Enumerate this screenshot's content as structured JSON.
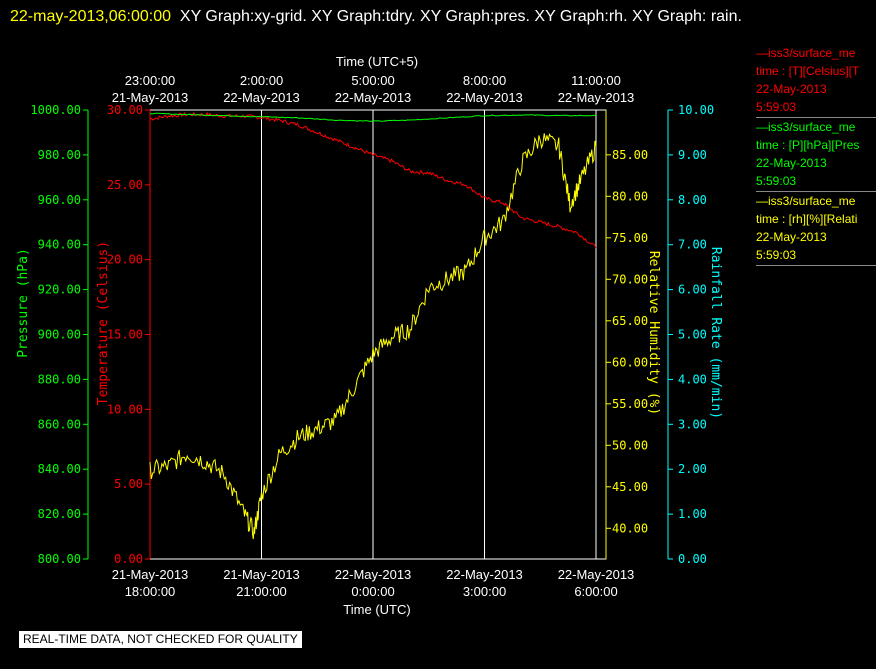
{
  "header": {
    "datetime": "22-may-2013,06:00:00",
    "graphs": "XY Graph:xy-grid.  XY Graph:tdry.  XY Graph:pres.  XY Graph:rh.  XY Graph: rain."
  },
  "colors": {
    "temperature": "#ff0000",
    "pressure": "#00ff00",
    "rh": "#ffff00",
    "rain": "#00ffff",
    "grid": "#ffffff"
  },
  "legend": [
    {
      "line1": "iss3/surface_me",
      "line2": "time : [T][Celsius][T",
      "line3": "22-May-2013",
      "line4": "5:59:03",
      "color": "#ff0000"
    },
    {
      "line1": "iss3/surface_me",
      "line2": "time : [P][hPa][Pres",
      "line3": "22-May-2013",
      "line4": "5:59:03",
      "color": "#00ff00"
    },
    {
      "line1": "iss3/surface_me",
      "line2": "time : [rh][%][Relati",
      "line3": "22-May-2013",
      "line4": "5:59:03",
      "color": "#ffff00"
    }
  ],
  "footer": "REAL-TIME DATA, NOT CHECKED FOR QUALITY",
  "chart_data": {
    "type": "line",
    "x_bottom": {
      "label": "Time (UTC)",
      "range_hours": [
        0,
        12
      ],
      "ticks": [
        {
          "at": 0,
          "date": "21-May-2013",
          "time": "18:00:00"
        },
        {
          "at": 3,
          "date": "21-May-2013",
          "time": "21:00:00"
        },
        {
          "at": 6,
          "date": "22-May-2013",
          "time": "0:00:00"
        },
        {
          "at": 9,
          "date": "22-May-2013",
          "time": "3:00:00"
        },
        {
          "at": 12,
          "date": "22-May-2013",
          "time": "6:00:00"
        }
      ]
    },
    "x_top": {
      "label": "Time (UTC+5)",
      "ticks": [
        {
          "at": 0,
          "time": "23:00:00",
          "date": "21-May-2013"
        },
        {
          "at": 3,
          "time": "2:00:00",
          "date": "22-May-2013"
        },
        {
          "at": 6,
          "time": "5:00:00",
          "date": "22-May-2013"
        },
        {
          "at": 9,
          "time": "8:00:00",
          "date": "22-May-2013"
        },
        {
          "at": 12,
          "time": "11:00:00",
          "date": "22-May-2013"
        }
      ]
    },
    "axes": {
      "pressure": {
        "label": "Pressure (hPa)",
        "range": [
          800,
          1000
        ],
        "ticks": [
          "800.00",
          "820.00",
          "840.00",
          "860.00",
          "880.00",
          "900.00",
          "920.00",
          "940.00",
          "960.00",
          "980.00",
          "1000.00"
        ]
      },
      "temperature": {
        "label": "Temperature (Celsius)",
        "range": [
          0,
          30
        ],
        "ticks": [
          "0.00",
          "5.00",
          "10.00",
          "15.00",
          "20.00",
          "25.00",
          "30.00"
        ]
      },
      "rh": {
        "label": "Relative Humidity (%)",
        "range": [
          36.3,
          90.4
        ],
        "ticks": [
          "40.00",
          "45.00",
          "50.00",
          "55.00",
          "60.00",
          "65.00",
          "70.00",
          "75.00",
          "80.00",
          "85.00"
        ]
      },
      "rain": {
        "label": "Rainfall Rate (mm/min)",
        "range": [
          0,
          10
        ],
        "ticks": [
          "0.00",
          "1.00",
          "2.00",
          "3.00",
          "4.00",
          "5.00",
          "6.00",
          "7.00",
          "8.00",
          "9.00",
          "10.00"
        ]
      }
    },
    "series": [
      {
        "name": "temperature",
        "x": [
          0,
          0.5,
          1,
          1.5,
          2,
          2.5,
          3,
          3.5,
          4,
          4.5,
          5,
          5.5,
          6,
          6.5,
          7,
          7.5,
          8,
          8.5,
          9,
          9.5,
          10,
          10.5,
          11,
          11.5,
          12
        ],
        "values": [
          29.4,
          29.6,
          29.7,
          29.7,
          29.6,
          29.6,
          29.5,
          29.3,
          29.0,
          28.5,
          28.0,
          27.5,
          27.0,
          26.6,
          25.9,
          25.8,
          25.3,
          25.0,
          24.1,
          23.8,
          22.8,
          22.5,
          22.2,
          21.8,
          20.8
        ]
      },
      {
        "name": "pressure",
        "x": [
          0,
          1,
          2,
          3,
          4,
          5,
          6,
          7,
          8,
          9,
          10,
          11,
          12
        ],
        "values": [
          998.5,
          998.0,
          997.5,
          997.0,
          996.5,
          995.5,
          995.0,
          995.5,
          996.5,
          997.5,
          997.8,
          997.5,
          997.5
        ]
      },
      {
        "name": "rh",
        "x": [
          0,
          0.5,
          1,
          1.5,
          2,
          2.5,
          2.8,
          3,
          3.5,
          4,
          4.5,
          5,
          5.5,
          6,
          6.5,
          7,
          7.5,
          8,
          8.5,
          9,
          9.5,
          10,
          10.5,
          11,
          11.3,
          11.6,
          12
        ],
        "values": [
          47,
          47.5,
          49,
          48,
          46.5,
          42,
          39.5,
          44,
          49,
          51,
          52,
          53,
          57,
          61,
          63,
          64,
          69,
          70,
          71,
          75,
          77,
          84,
          87,
          86,
          79,
          82,
          86
        ]
      }
    ],
    "grid": true
  }
}
